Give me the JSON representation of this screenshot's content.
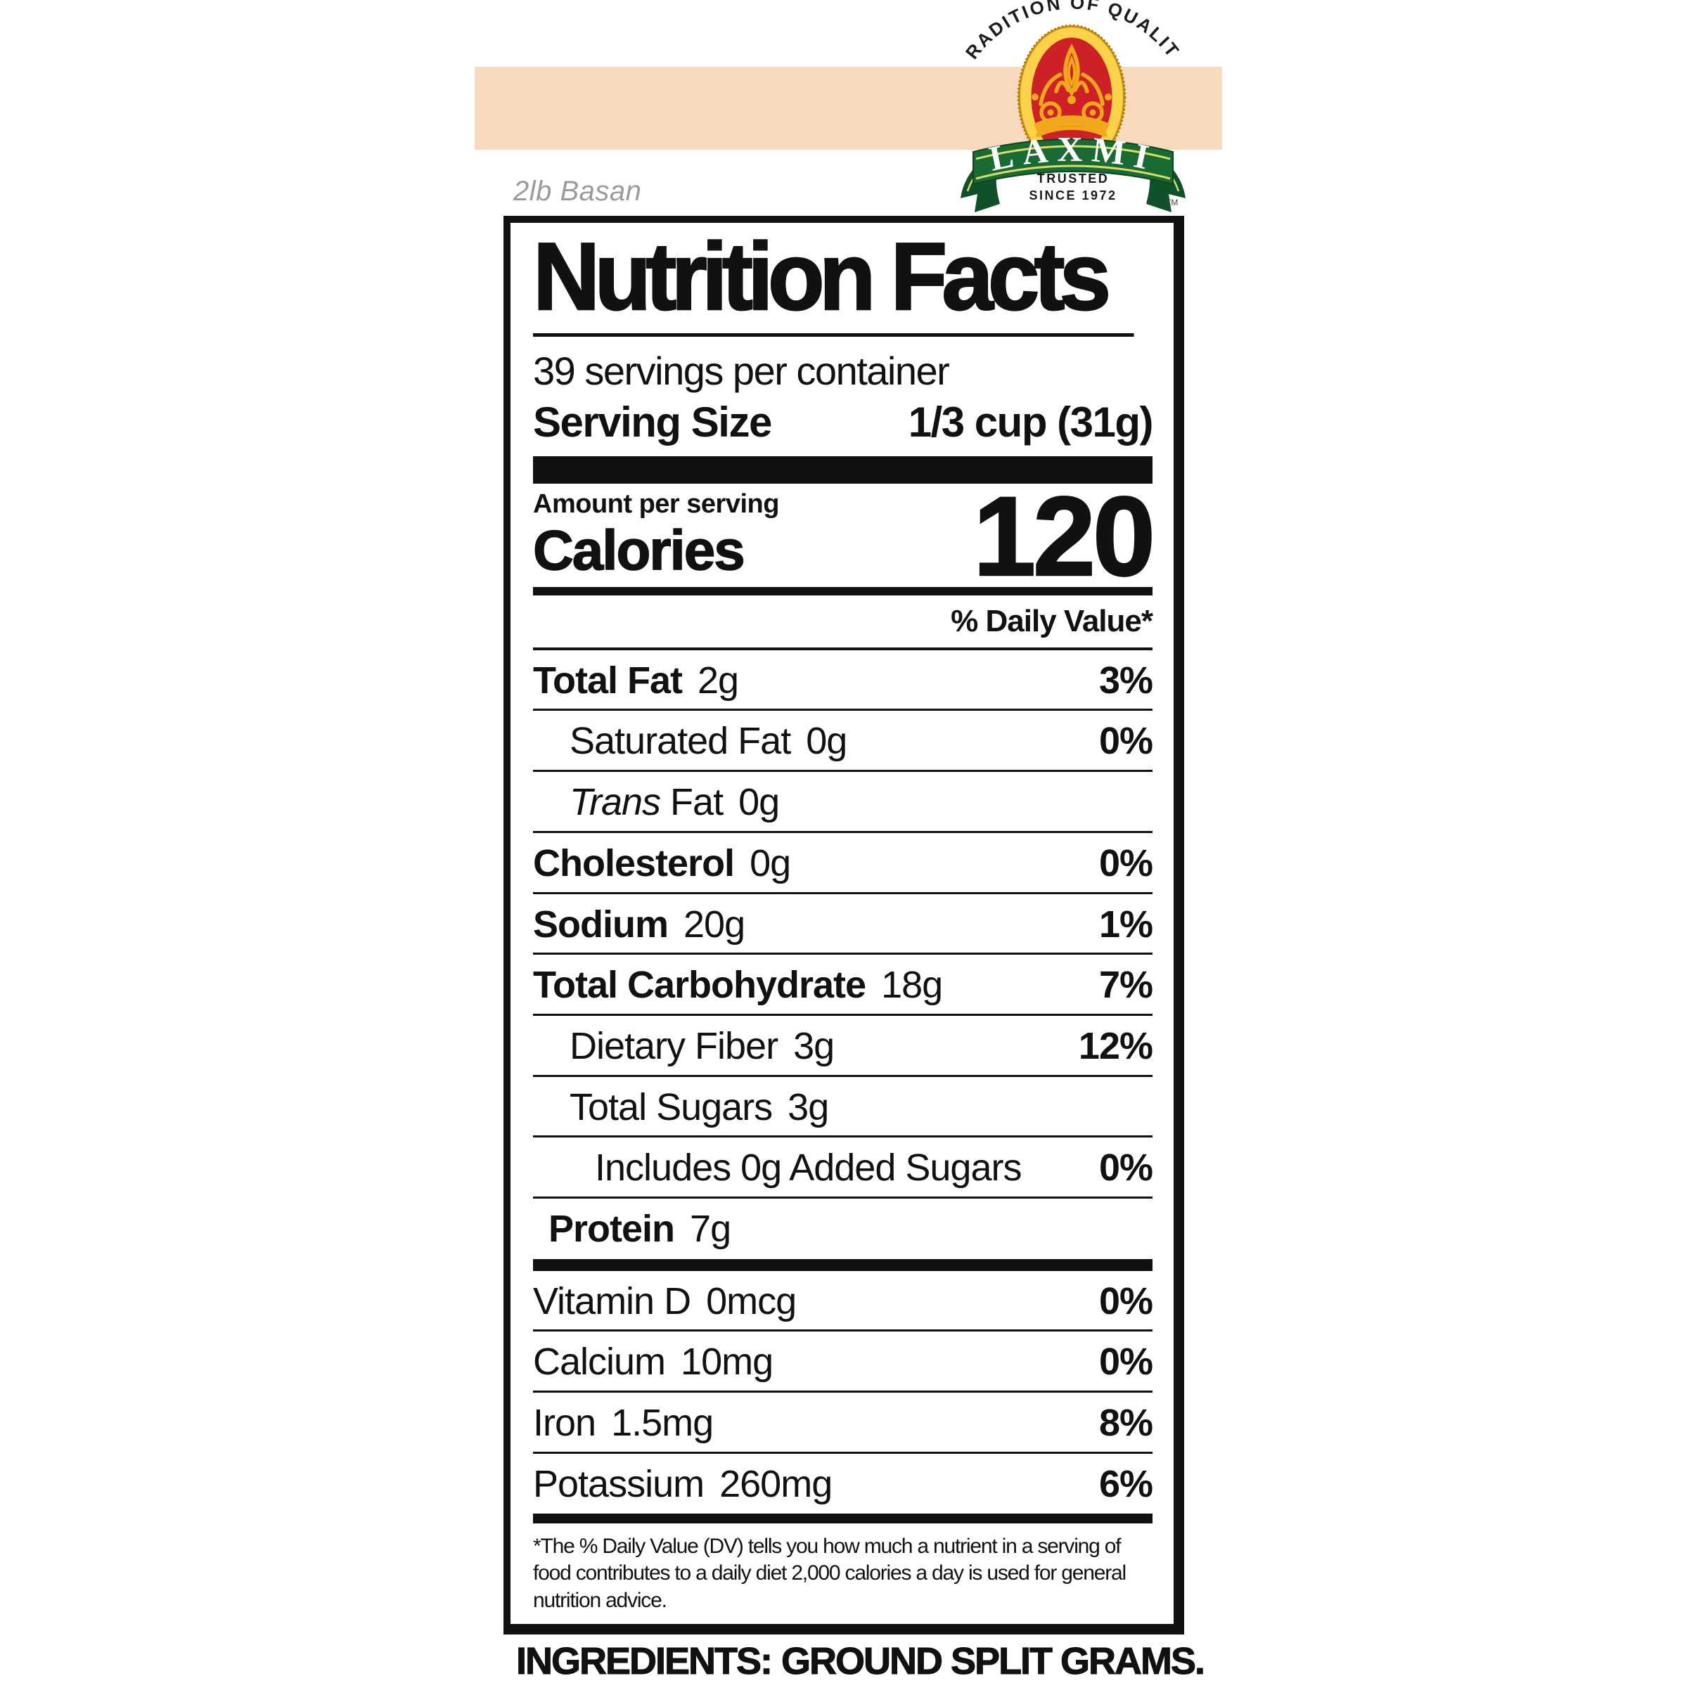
{
  "page": {
    "background": "#ffffff"
  },
  "banner": {
    "color": "#f8d9bd"
  },
  "brand": {
    "arc_text": "TRADITION OF QUALITY",
    "name": "LAXMI",
    "trusted_line1": "TRUSTED",
    "trusted_line2": "SINCE 1972",
    "trademark": "TM",
    "colors": {
      "red": "#ce2127",
      "gold": "#f2a81d",
      "gold_light": "#fbd24a",
      "gold_dark": "#c98e10",
      "green": "#1a6a33",
      "green_dark": "#11512a",
      "stripe": "#d9dd64",
      "text": "#1b1b1b"
    }
  },
  "product_note": "2lb Basan",
  "nutrition": {
    "title": "Nutrition Facts",
    "servings_per_container": "39 servings per container",
    "serving_size_label": "Serving Size",
    "serving_size_value": "1/3 cup (31g)",
    "amount_per_serving": "Amount per serving",
    "calories_label": "Calories",
    "calories_value": "120",
    "daily_value_header": "% Daily Value*",
    "main_rows": [
      {
        "name": "Total Fat",
        "amount": "2g",
        "dv": "3%",
        "indent": 0,
        "bold": true
      },
      {
        "name": "Saturated Fat",
        "amount": "0g",
        "dv": "0%",
        "indent": 1,
        "bold": false
      },
      {
        "name_italic": "Trans",
        "name": "Fat",
        "amount": "0g",
        "dv": "",
        "indent": 1,
        "bold": false
      },
      {
        "name": "Cholesterol",
        "amount": "0g",
        "dv": "0%",
        "indent": 0,
        "bold": true
      },
      {
        "name": "Sodium",
        "amount": "20g",
        "dv": "1%",
        "indent": 0,
        "bold": true
      },
      {
        "name": "Total Carbohydrate",
        "amount": "18g",
        "dv": "7%",
        "indent": 0,
        "bold": true
      },
      {
        "name": "Dietary Fiber",
        "amount": "3g",
        "dv": "12%",
        "indent": 1,
        "bold": false
      },
      {
        "name": "Total Sugars",
        "amount": "3g",
        "dv": "",
        "indent": 1,
        "bold": false
      },
      {
        "name": "Includes 0g Added Sugars",
        "amount": "",
        "dv": "0%",
        "indent": 2,
        "bold": false
      },
      {
        "name": "Protein",
        "amount": "7g",
        "dv": "",
        "indent": 0.5,
        "bold": true
      }
    ],
    "vitamin_rows": [
      {
        "name": "Vitamin D",
        "amount": "0mcg",
        "dv": "0%"
      },
      {
        "name": "Calcium",
        "amount": "10mg",
        "dv": "0%"
      },
      {
        "name": "Iron",
        "amount": "1.5mg",
        "dv": "8%"
      },
      {
        "name": "Potassium",
        "amount": "260mg",
        "dv": "6%"
      }
    ],
    "footnote": "*The % Daily Value (DV) tells you how much a nutrient in a serving of food contributes to a daily diet 2,000 calories a day is used for general nutrition advice."
  },
  "ingredients": {
    "label": "INGREDIENTS:",
    "value": "GROUND SPLIT GRAMS."
  }
}
